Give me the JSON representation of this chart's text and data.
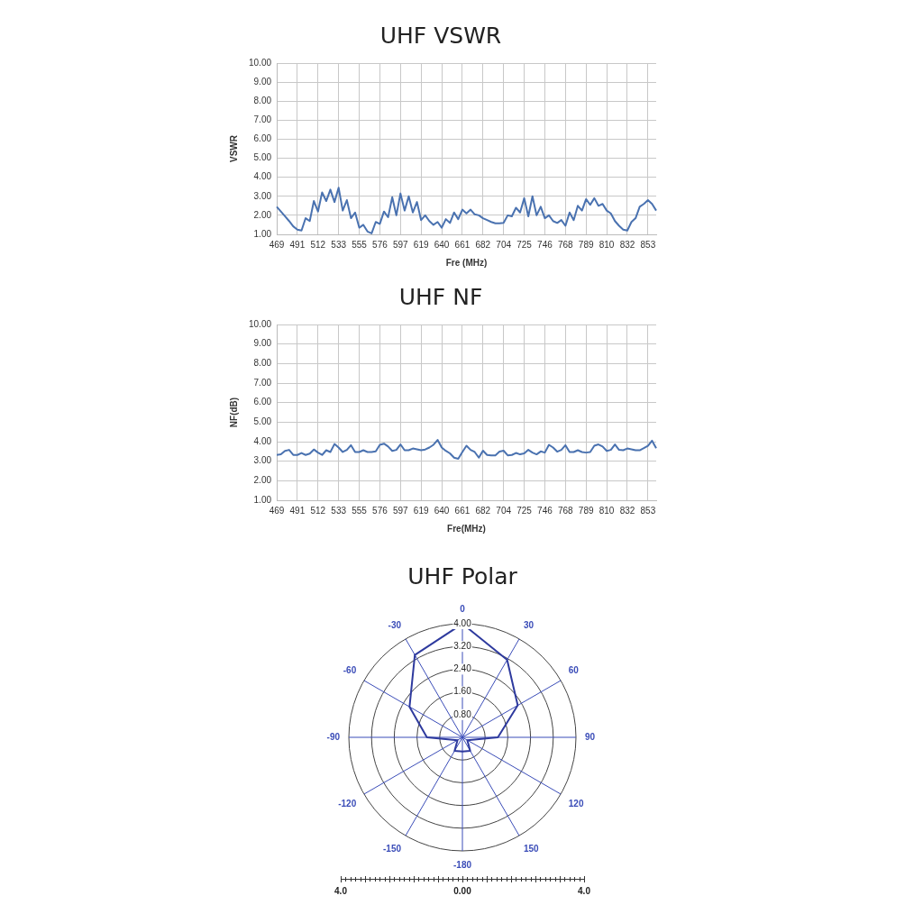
{
  "chart_data": [
    {
      "type": "line",
      "title": "UHF VSWR",
      "xlabel": "Fre (MHz)",
      "ylabel": "VSWR",
      "color": "#4a72b0",
      "marker": "none",
      "grid": true,
      "categories": [
        "469",
        null,
        null,
        null,
        null,
        "491",
        null,
        null,
        null,
        null,
        "512",
        null,
        null,
        null,
        null,
        "533",
        null,
        null,
        null,
        null,
        "555",
        null,
        null,
        null,
        null,
        "576",
        null,
        null,
        null,
        null,
        "597",
        null,
        null,
        null,
        null,
        "619",
        null,
        null,
        null,
        null,
        "640",
        null,
        null,
        null,
        null,
        "661",
        null,
        null,
        null,
        null,
        "682",
        null,
        null,
        null,
        null,
        "704",
        null,
        null,
        null,
        null,
        "725",
        null,
        null,
        null,
        null,
        "746",
        null,
        null,
        null,
        null,
        "768",
        null,
        null,
        null,
        null,
        "789",
        null,
        null,
        null,
        null,
        "810",
        null,
        null,
        null,
        null,
        "832",
        null,
        null,
        null,
        null,
        "853",
        null,
        null
      ],
      "values": [
        2.45,
        2.2,
        1.95,
        1.7,
        1.42,
        1.25,
        1.2,
        1.85,
        1.7,
        2.75,
        2.2,
        3.2,
        2.75,
        3.35,
        2.7,
        3.45,
        2.25,
        2.8,
        1.85,
        2.15,
        1.35,
        1.5,
        1.15,
        1.05,
        1.65,
        1.55,
        2.2,
        1.9,
        2.95,
        2.0,
        3.15,
        2.25,
        3.0,
        2.15,
        2.7,
        1.75,
        2.0,
        1.7,
        1.5,
        1.65,
        1.35,
        1.8,
        1.6,
        2.15,
        1.8,
        2.3,
        2.1,
        2.3,
        2.05,
        2.0,
        1.85,
        1.75,
        1.65,
        1.58,
        1.58,
        1.6,
        2.0,
        1.95,
        2.4,
        2.15,
        2.9,
        1.95,
        3.0,
        2.0,
        2.45,
        1.85,
        2.0,
        1.7,
        1.6,
        1.75,
        1.45,
        2.15,
        1.75,
        2.5,
        2.25,
        2.85,
        2.55,
        2.9,
        2.5,
        2.6,
        2.25,
        2.1,
        1.7,
        1.45,
        1.25,
        1.2,
        1.65,
        1.85,
        2.45,
        2.6,
        2.8,
        2.6,
        2.25
      ],
      "ylim": [
        1,
        10
      ],
      "yticks": [
        {
          "value": 1,
          "label": "1.00"
        },
        {
          "value": 2,
          "label": "2.00"
        },
        {
          "value": 3,
          "label": "3.00"
        },
        {
          "value": 4,
          "label": "4.00"
        },
        {
          "value": 5,
          "label": "5.00"
        },
        {
          "value": 6,
          "label": "6.00"
        },
        {
          "value": 7,
          "label": "7.00"
        },
        {
          "value": 8,
          "label": "8.00"
        },
        {
          "value": 9,
          "label": "9.00"
        },
        {
          "value": 10,
          "label": "10.00"
        }
      ]
    },
    {
      "type": "line",
      "title": "UHF NF",
      "xlabel": "Fre(MHz)",
      "ylabel": "NF(dB)",
      "color": "#4a72b0",
      "marker": "none",
      "grid": true,
      "categories": [
        "469",
        null,
        null,
        null,
        null,
        "491",
        null,
        null,
        null,
        null,
        "512",
        null,
        null,
        null,
        null,
        "533",
        null,
        null,
        null,
        null,
        "555",
        null,
        null,
        null,
        null,
        "576",
        null,
        null,
        null,
        null,
        "597",
        null,
        null,
        null,
        null,
        "619",
        null,
        null,
        null,
        null,
        "640",
        null,
        null,
        null,
        null,
        "661",
        null,
        null,
        null,
        null,
        "682",
        null,
        null,
        null,
        null,
        "704",
        null,
        null,
        null,
        null,
        "725",
        null,
        null,
        null,
        null,
        "746",
        null,
        null,
        null,
        null,
        "768",
        null,
        null,
        null,
        null,
        "789",
        null,
        null,
        null,
        null,
        "810",
        null,
        null,
        null,
        null,
        "832",
        null,
        null,
        null,
        null,
        "853",
        null,
        null
      ],
      "values": [
        3.32,
        3.35,
        3.53,
        3.58,
        3.32,
        3.32,
        3.42,
        3.32,
        3.39,
        3.6,
        3.44,
        3.32,
        3.56,
        3.47,
        3.88,
        3.7,
        3.47,
        3.58,
        3.82,
        3.47,
        3.47,
        3.56,
        3.47,
        3.47,
        3.5,
        3.84,
        3.9,
        3.75,
        3.53,
        3.58,
        3.86,
        3.56,
        3.56,
        3.65,
        3.61,
        3.56,
        3.6,
        3.7,
        3.84,
        4.09,
        3.7,
        3.53,
        3.4,
        3.18,
        3.12,
        3.47,
        3.79,
        3.58,
        3.47,
        3.18,
        3.54,
        3.32,
        3.3,
        3.3,
        3.49,
        3.54,
        3.3,
        3.32,
        3.42,
        3.35,
        3.4,
        3.58,
        3.44,
        3.35,
        3.5,
        3.44,
        3.84,
        3.7,
        3.49,
        3.58,
        3.82,
        3.47,
        3.47,
        3.56,
        3.47,
        3.44,
        3.47,
        3.79,
        3.86,
        3.75,
        3.53,
        3.58,
        3.86,
        3.58,
        3.56,
        3.65,
        3.61,
        3.56,
        3.56,
        3.67,
        3.79,
        4.05,
        3.67
      ],
      "ylim": [
        1,
        10
      ],
      "yticks": [
        {
          "value": 1,
          "label": "1.00"
        },
        {
          "value": 2,
          "label": "2.00"
        },
        {
          "value": 3,
          "label": "3.00"
        },
        {
          "value": 4,
          "label": "4.00"
        },
        {
          "value": 5,
          "label": "5.00"
        },
        {
          "value": 6,
          "label": "6.00"
        },
        {
          "value": 7,
          "label": "7.00"
        },
        {
          "value": 8,
          "label": "8.00"
        },
        {
          "value": 9,
          "label": "9.00"
        },
        {
          "value": 10,
          "label": "10.00"
        }
      ]
    },
    {
      "type": "radar",
      "title": "UHF Polar",
      "color": "#2e3a9e",
      "marker": "none",
      "categories": [
        "0",
        "30",
        "60",
        "90",
        "120",
        "150",
        "-180",
        "-150",
        "-120",
        "-90",
        "-60",
        "-30"
      ],
      "values": [
        4.0,
        3.15,
        2.25,
        1.25,
        0.2,
        0.55,
        0.5,
        0.55,
        0.2,
        1.25,
        2.15,
        3.35
      ],
      "ylim": [
        0,
        4
      ],
      "yticks": [
        {
          "value": 0.8,
          "label": "0.80"
        },
        {
          "value": 1.6,
          "label": "1.60"
        },
        {
          "value": 2.4,
          "label": "2.40"
        },
        {
          "value": 3.2,
          "label": "3.20"
        },
        {
          "value": 4,
          "label": "4.00"
        }
      ],
      "annotations": [
        "4.0",
        "0.00",
        "4.0"
      ]
    }
  ]
}
